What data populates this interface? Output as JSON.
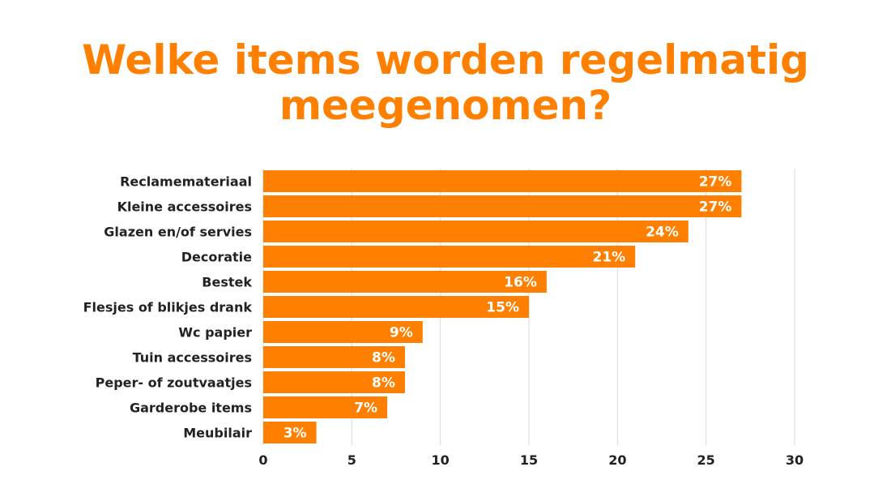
{
  "chart_data": {
    "type": "bar",
    "orientation": "horizontal",
    "title_lines": [
      "Welke items worden regelmatig",
      "meegenomen?"
    ],
    "categories": [
      "Reclamemateriaal",
      "Kleine accessoires",
      "Glazen en/of servies",
      "Decoratie",
      "Bestek",
      "Flesjes of blikjes drank",
      "Wc papier",
      "Tuin accessoires",
      "Peper- of zoutvaatjes",
      "Garderobe items",
      "Meubilair"
    ],
    "values": [
      27,
      27,
      24,
      21,
      16,
      15,
      9,
      8,
      8,
      7,
      3
    ],
    "data_labels": [
      "27%",
      "27%",
      "24%",
      "21%",
      "16%",
      "15%",
      "9%",
      "8%",
      "8%",
      "7%",
      "3%"
    ],
    "xlim": [
      0,
      30
    ],
    "x_ticks": [
      0,
      5,
      10,
      15,
      20,
      25,
      30
    ],
    "x_tick_labels": [
      "0",
      "5",
      "10",
      "15",
      "20",
      "25",
      "30"
    ],
    "grid": "vertical",
    "legend": "none",
    "colors": {
      "bar": "#ff7f00",
      "title": "#ff7f00",
      "grid": "#d9d9d9",
      "label_text": "#222222",
      "data_label_text": "#ffffff"
    }
  }
}
